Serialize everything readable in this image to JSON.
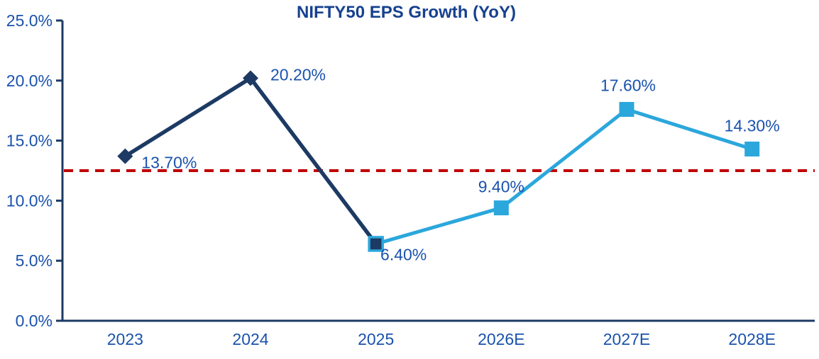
{
  "chart_data": {
    "type": "line",
    "title": "NIFTY50 EPS Growth (YoY)",
    "categories": [
      "2023",
      "2024",
      "2025",
      "2026E",
      "2027E",
      "2028E"
    ],
    "values_by_category": [
      13.7,
      20.2,
      6.4,
      9.4,
      17.6,
      14.3
    ],
    "point_labels": [
      "13.70%",
      "20.20%",
      "6.40%",
      "9.40%",
      "17.60%",
      "14.30%"
    ],
    "series": [
      {
        "name": "historical",
        "color": "#1C3A63",
        "marker": "diamond",
        "categories": [
          "2023",
          "2024",
          "2025"
        ],
        "values": [
          13.7,
          20.2,
          6.4
        ]
      },
      {
        "name": "estimates",
        "color": "#2BA7DC",
        "marker": "square",
        "categories": [
          "2025",
          "2026E",
          "2027E",
          "2028E"
        ],
        "values": [
          6.4,
          9.4,
          17.6,
          14.3
        ]
      }
    ],
    "reference_line": {
      "value": 12.5,
      "color": "#C00000",
      "style": "dashed"
    },
    "y_axis": {
      "ticks": [
        "0.0%",
        "5.0%",
        "10.0%",
        "15.0%",
        "20.0%",
        "25.0%"
      ],
      "min": 0,
      "max": 25
    },
    "x_axis": {
      "ticks": [
        "2023",
        "2024",
        "2025",
        "2026E",
        "2027E",
        "2028E"
      ]
    },
    "grid": false,
    "legend": false,
    "colors": {
      "historical_line": "#1C3A63",
      "estimate_line": "#2BA7DC",
      "transition_marker_fill": "#1C3A63",
      "transition_marker_border": "#2BA7DC",
      "data_label_text": "#1A52AD",
      "axis_line": "#1C3A63",
      "axis_label_text": "#1A52AD",
      "title_text": "#16418F",
      "reference_line": "#C00000",
      "background": "#FFFFFF"
    }
  }
}
